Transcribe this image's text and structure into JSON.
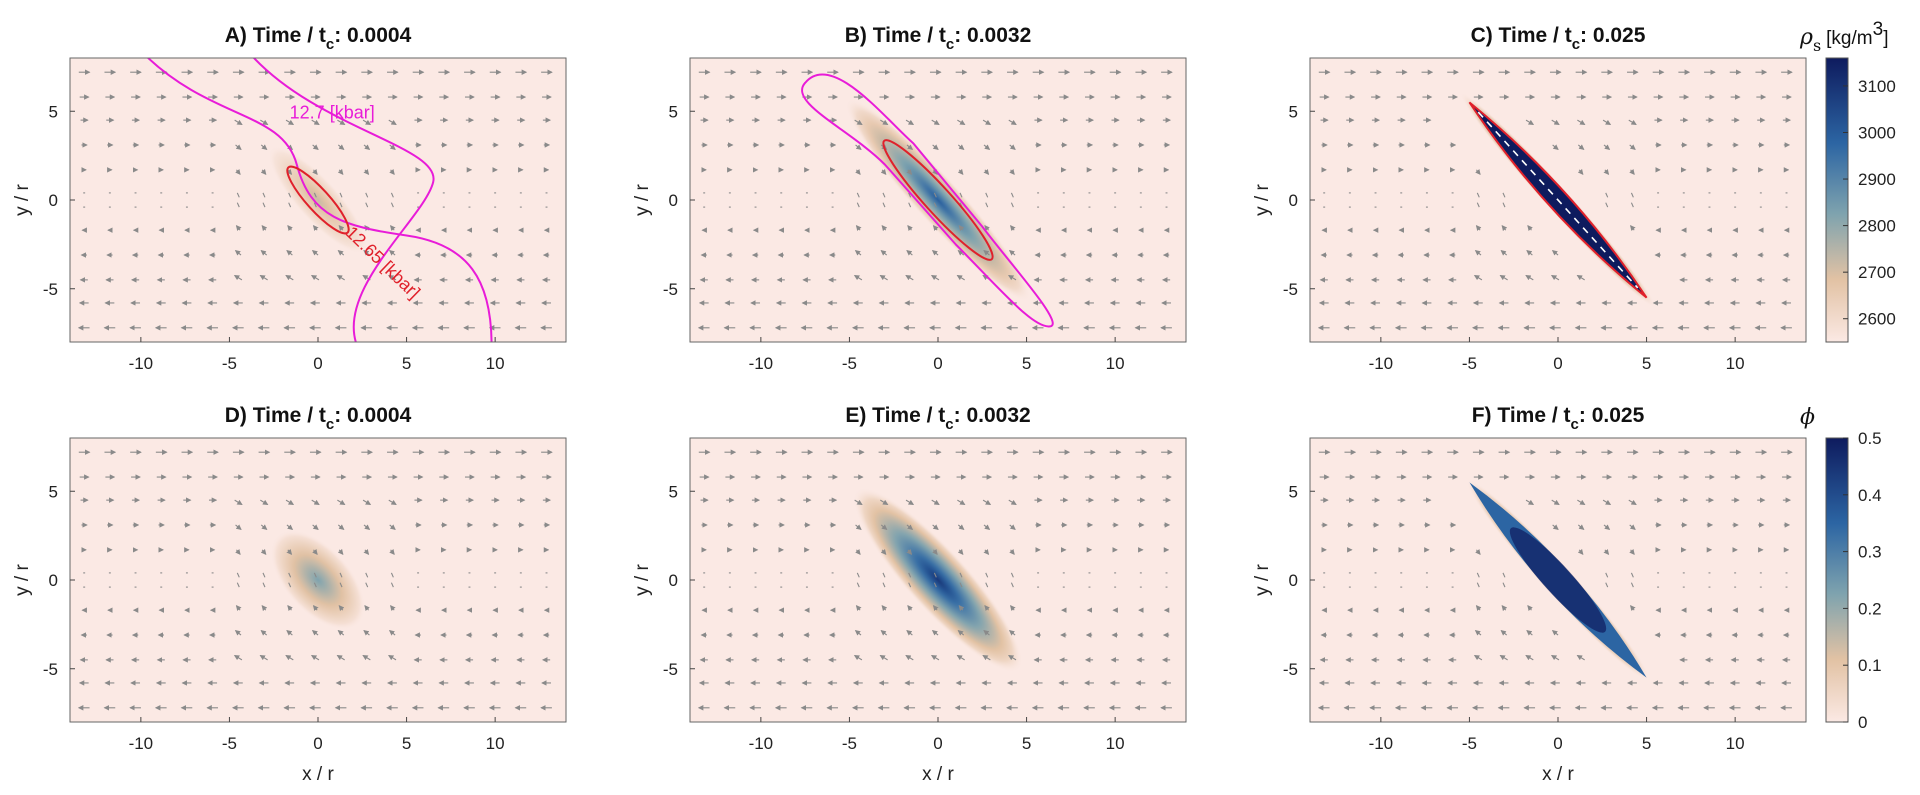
{
  "colors": {
    "background": "#fbe9e4",
    "deep_blue": "#0e1b5e",
    "mid_blue": "#2c65a3",
    "teal": "#5e92a8",
    "tan": "#e2c2a4",
    "arrow": "#8a8a8a",
    "magenta": "#e81cd8",
    "red": "#e0212b"
  },
  "chart_data": [
    {
      "type": "heatmap",
      "panel": "A",
      "title_prefix": "A) Time / t",
      "title_sub": "c",
      "title_suffix": ": 0.0004",
      "time": 0.0004,
      "field": "rho_s",
      "xlabel": "",
      "ylabel": "y / r",
      "xlim": [
        -14,
        14
      ],
      "ylim": [
        -8,
        8
      ],
      "xticks": [
        -10,
        -5,
        0,
        5,
        10
      ],
      "yticks": [
        -5,
        0,
        5
      ],
      "band": {
        "length": 6,
        "width": 1.8,
        "max_level": 0.28,
        "spread": 1.3
      },
      "contours": [
        {
          "label": "12.7 [kbar]",
          "color": "#e81cd8"
        },
        {
          "label": "12.65 [kbar]",
          "color": "#e0212b"
        }
      ]
    },
    {
      "type": "heatmap",
      "panel": "B",
      "title_prefix": "B) Time / t",
      "title_sub": "c",
      "title_suffix": ": 0.0032",
      "time": 0.0032,
      "field": "rho_s",
      "xlabel": "",
      "ylabel": "y / r",
      "xlim": [
        -14,
        14
      ],
      "ylim": [
        -8,
        8
      ],
      "xticks": [
        -10,
        -5,
        0,
        5,
        10
      ],
      "yticks": [
        -5,
        0,
        5
      ],
      "band": {
        "length": 10,
        "width": 1.7,
        "max_level": 0.72,
        "spread": 1.5
      },
      "contours": []
    },
    {
      "type": "heatmap",
      "panel": "C",
      "title_prefix": "C) Time / t",
      "title_sub": "c",
      "title_suffix": ": 0.025",
      "time": 0.025,
      "field": "rho_s",
      "xlabel": "",
      "ylabel": "y / r",
      "xlim": [
        -14,
        14
      ],
      "ylim": [
        -8,
        8
      ],
      "xticks": [
        -10,
        -5,
        0,
        5,
        10
      ],
      "yticks": [
        -5,
        0,
        5
      ],
      "band": {
        "length": 14.6,
        "width": 1.25,
        "max_level": 1.0,
        "spread": 1.1
      },
      "contours": []
    },
    {
      "type": "heatmap",
      "panel": "D",
      "title_prefix": "D) Time / t",
      "title_sub": "c",
      "title_suffix": ": 0.0004",
      "time": 0.0004,
      "field": "phi",
      "xlabel": "x / r",
      "ylabel": "y / r",
      "xlim": [
        -14,
        14
      ],
      "ylim": [
        -8,
        8
      ],
      "xticks": [
        -10,
        -5,
        0,
        5,
        10
      ],
      "yticks": [
        -5,
        0,
        5
      ],
      "band": {
        "length": 4.2,
        "width": 2.3,
        "max_level": 0.45,
        "spread": 1.6
      },
      "contours": []
    },
    {
      "type": "heatmap",
      "panel": "E",
      "title_prefix": "E) Time / t",
      "title_sub": "c",
      "title_suffix": ": 0.0032",
      "time": 0.0032,
      "field": "phi",
      "xlabel": "x / r",
      "ylabel": "y / r",
      "xlim": [
        -14,
        14
      ],
      "ylim": [
        -8,
        8
      ],
      "xticks": [
        -10,
        -5,
        0,
        5,
        10
      ],
      "yticks": [
        -5,
        0,
        5
      ],
      "band": {
        "length": 7.5,
        "width": 1.9,
        "max_level": 0.88,
        "spread": 1.8
      },
      "contours": []
    },
    {
      "type": "heatmap",
      "panel": "F",
      "title_prefix": "F) Time / t",
      "title_sub": "c",
      "title_suffix": ": 0.025",
      "time": 0.025,
      "field": "phi",
      "xlabel": "x / r",
      "ylabel": "y / r",
      "xlim": [
        -14,
        14
      ],
      "ylim": [
        -8,
        8
      ],
      "xticks": [
        -10,
        -5,
        0,
        5,
        10
      ],
      "yticks": [
        -5,
        0,
        5
      ],
      "band": {
        "length": 15,
        "width": 1.7,
        "max_level": 0.85,
        "spread": 1.0
      },
      "contours": []
    }
  ],
  "colorbars": [
    {
      "id": "rho_s",
      "title_symbol": "ρ",
      "title_sub": "s",
      "unit_prefix": "[kg/m",
      "unit_sup": "3",
      "unit_suffix": "]",
      "range": [
        2550,
        3160
      ],
      "ticks": [
        3100,
        3000,
        2900,
        2800,
        2700,
        2600
      ]
    },
    {
      "id": "phi",
      "title_symbol": "ϕ",
      "range": [
        0,
        0.5
      ],
      "ticks": [
        0.5,
        0.4,
        0.3,
        0.2,
        0.1,
        0
      ]
    }
  ]
}
